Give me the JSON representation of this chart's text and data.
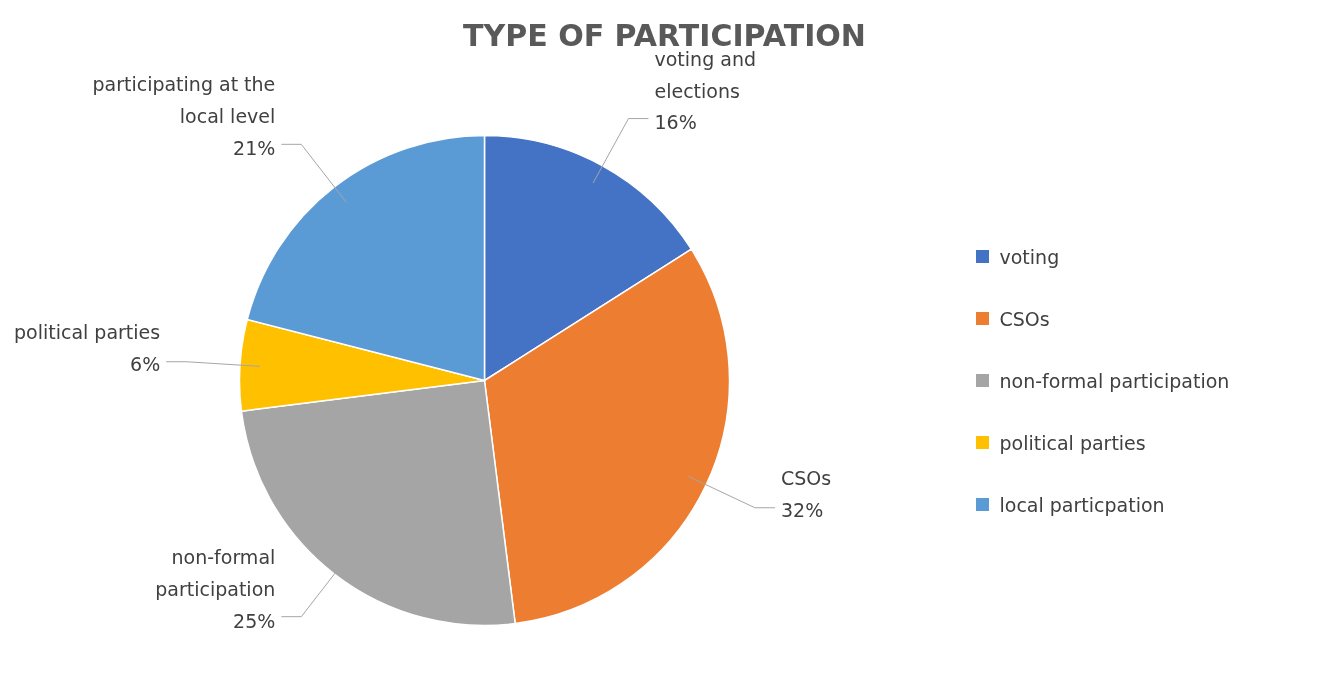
{
  "chart_data": {
    "type": "pie",
    "title": "TYPE OF PARTICIPATION",
    "categories": [
      "voting",
      "CSOs",
      "non-formal participation",
      "political parties",
      "local particpation"
    ],
    "values": [
      16,
      32,
      25,
      6,
      21
    ],
    "colors": [
      "#4472c4",
      "#ed7d31",
      "#a5a5a5",
      "#ffc000",
      "#5b9bd5"
    ],
    "value_labels": [
      "voting and\nelections\n16%",
      "CSOs\n32%",
      "non-formal\nparticipation\n25%",
      "political parties\n6%",
      "participating at the\nlocal level\n21%"
    ],
    "legend": "right"
  }
}
